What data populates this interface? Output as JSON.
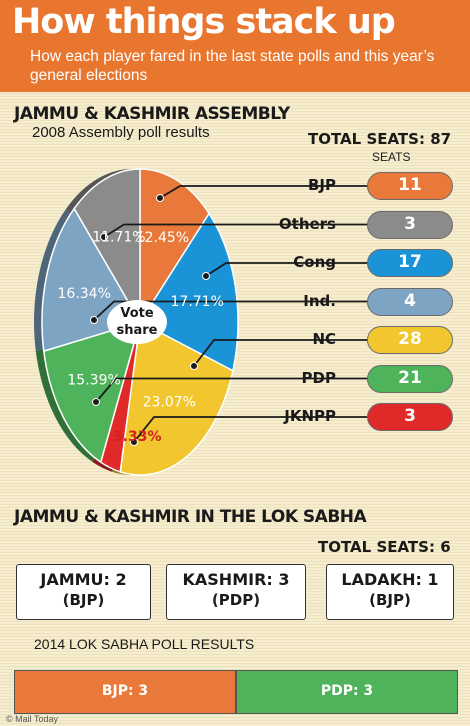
{
  "header": {
    "title": "How things stack up",
    "subtitle": "How each player fared in the last state polls and this year’s general elections"
  },
  "assembly": {
    "title": "JAMMU & KASHMIR ASSEMBLY",
    "subtitle": "2008 Assembly poll results",
    "total_seats": "TOTAL SEATS: 87",
    "seats_header": "SEATS",
    "center_label_line1": "Vote",
    "center_label_line2": "share"
  },
  "chart_data": {
    "type": "pie",
    "title": "2008 Assembly poll results",
    "center_label": "Vote share",
    "slices": [
      {
        "party": "BJP",
        "vote_share": 12.45,
        "label": "12.45%",
        "seats": 11,
        "color": "#e8793a"
      },
      {
        "party": "Cong",
        "vote_share": 17.71,
        "label": "17.71%",
        "seats": 17,
        "color": "#1a94d6"
      },
      {
        "party": "NC",
        "vote_share": 23.07,
        "label": "23.07%",
        "seats": 28,
        "color": "#f1c62e"
      },
      {
        "party": "JKNPP",
        "vote_share": 3.33,
        "label": "3.33%",
        "seats": 3,
        "color": "#e02a2a"
      },
      {
        "party": "PDP",
        "vote_share": 15.39,
        "label": "15.39%",
        "seats": 21,
        "color": "#4eb35a"
      },
      {
        "party": "Ind.",
        "vote_share": 16.34,
        "label": "16.34%",
        "seats": 4,
        "color": "#7ea4c4"
      },
      {
        "party": "Others",
        "vote_share": 11.71,
        "label": "11.71%",
        "seats": 3,
        "color": "#8b8b8b"
      }
    ],
    "seat_rows": [
      {
        "party": "BJP",
        "seats": "11",
        "color": "#e8793a"
      },
      {
        "party": "Others",
        "seats": "3",
        "color": "#8b8b8b"
      },
      {
        "party": "Cong",
        "seats": "17",
        "color": "#1a94d6"
      },
      {
        "party": "Ind.",
        "seats": "4",
        "color": "#7ea4c4"
      },
      {
        "party": "NC",
        "seats": "28",
        "color": "#f1c62e"
      },
      {
        "party": "PDP",
        "seats": "21",
        "color": "#4eb35a"
      },
      {
        "party": "JKNPP",
        "seats": "3",
        "color": "#e02a2a"
      }
    ]
  },
  "lok_sabha": {
    "title": "JAMMU & KASHMIR IN THE LOK SABHA",
    "total_seats": "TOTAL SEATS: 6",
    "constituencies": [
      {
        "name": "JAMMU: 2",
        "party": "(BJP)"
      },
      {
        "name": "KASHMIR: 3",
        "party": "(PDP)"
      },
      {
        "name": "LADAKH: 1",
        "party": "(BJP)"
      }
    ],
    "results_title": "2014 LOK SABHA POLL RESULTS",
    "bar": [
      {
        "label": "BJP: 3",
        "seats": 3,
        "color": "#e8793a"
      },
      {
        "label": "PDP: 3",
        "seats": 3,
        "color": "#4eb35a"
      }
    ]
  },
  "credit": "© Mail Today"
}
